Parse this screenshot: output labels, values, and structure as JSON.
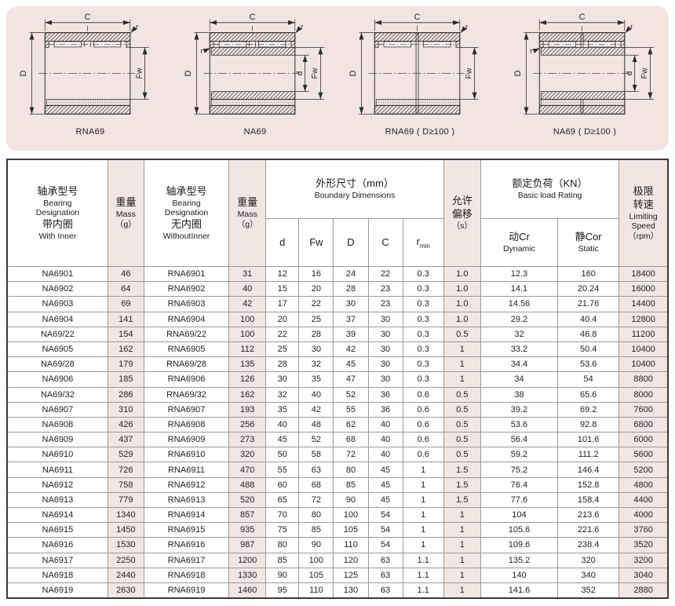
{
  "colors": {
    "panel_pink": "#f2e5e1",
    "column_shade": "#f0e7e3",
    "text": "#1a1a1a",
    "line_dark": "#2b2b2b"
  },
  "diagram": {
    "dim_labels": {
      "C": "C",
      "r": "r",
      "D": "D",
      "Fw": "Fw",
      "d": "d"
    },
    "figures": [
      {
        "id": "rna69",
        "caption": "RNA69",
        "inner": false,
        "double": false
      },
      {
        "id": "na69",
        "caption": "NA69",
        "inner": true,
        "double": false
      },
      {
        "id": "rna69-d100",
        "caption": "RNA69 ( D≥100 )",
        "inner": false,
        "double": true
      },
      {
        "id": "na69-d100",
        "caption": "NA69 ( D≥100 )",
        "inner": true,
        "double": true
      }
    ]
  },
  "table": {
    "shaded_columns": [
      1,
      3,
      9,
      12
    ],
    "header": {
      "with_inner": {
        "zh1": "轴承型号",
        "en1": "Bearing",
        "en2": "Designation",
        "zh2": "带内圈",
        "en3": "With Inner"
      },
      "mass": {
        "zh": "重量",
        "en": "Mass",
        "unit": "（g）"
      },
      "without_inner": {
        "zh1": "轴承型号",
        "en1": "Bearing",
        "en2": "Designation",
        "zh2": "无内圈",
        "en3": "WithoutInner"
      },
      "boundary": {
        "zh": "外形尺寸（mm）",
        "en": "Boundary Dimensions"
      },
      "sub": {
        "d": "d",
        "fw": "Fw",
        "D": "D",
        "C": "C",
        "r": "r",
        "r_sub": "min"
      },
      "misalign": {
        "zh1": "允许",
        "zh2": "偏移",
        "unit": "（s）"
      },
      "load": {
        "zh": "额定负荷（KN）",
        "en": "Basic load Rating"
      },
      "dynamic": {
        "zh": "动Cr",
        "en": "Dynamic"
      },
      "static": {
        "zh": "静Cor",
        "en": "Static"
      },
      "speed": {
        "zh1": "极限",
        "zh2": "转速",
        "en1": "Limiting",
        "en2": "Speed",
        "unit": "（rpm）"
      }
    },
    "rows": [
      [
        "NA6901",
        "46",
        "RNA6901",
        "31",
        "12",
        "16",
        "24",
        "22",
        "0.3",
        "1.0",
        "12.3",
        "160",
        "18400"
      ],
      [
        "NA6902",
        "64",
        "RNA6902",
        "40",
        "15",
        "20",
        "28",
        "23",
        "0.3",
        "1.0",
        "14.1",
        "20.24",
        "16000"
      ],
      [
        "NA6903",
        "69",
        "RNA6903",
        "42",
        "17",
        "22",
        "30",
        "23",
        "0.3",
        "1.0",
        "14.56",
        "21.76",
        "14400"
      ],
      [
        "NA6904",
        "141",
        "RNA6904",
        "100",
        "20",
        "25",
        "37",
        "30",
        "0.3",
        "1.0",
        "29.2",
        "40.4",
        "12800"
      ],
      [
        "NA69/22",
        "154",
        "RNA69/22",
        "100",
        "22",
        "28",
        "39",
        "30",
        "0.3",
        "0.5",
        "32",
        "46.8",
        "11200"
      ],
      [
        "NA6905",
        "162",
        "RNA6905",
        "112",
        "25",
        "30",
        "42",
        "30",
        "0.3",
        "1",
        "33.2",
        "50.4",
        "10400"
      ],
      [
        "NA69/28",
        "179",
        "RNA69/28",
        "135",
        "28",
        "32",
        "45",
        "30",
        "0.3",
        "1",
        "34.4",
        "53.6",
        "10400"
      ],
      [
        "NA6906",
        "185",
        "RNA6906",
        "126",
        "30",
        "35",
        "47",
        "30",
        "0.3",
        "1",
        "34",
        "54",
        "8800"
      ],
      [
        "NA69/32",
        "286",
        "RNA69/32",
        "162",
        "32",
        "40",
        "52",
        "36",
        "0.6",
        "0.5",
        "38",
        "65.6",
        "8000"
      ],
      [
        "NA6907",
        "310",
        "RNA6907",
        "193",
        "35",
        "42",
        "55",
        "36",
        "0.6",
        "0.5",
        "39.2",
        "69.2",
        "7600"
      ],
      [
        "NA6908",
        "426",
        "RNA6908",
        "256",
        "40",
        "48",
        "62",
        "40",
        "0.6",
        "0.5",
        "53.6",
        "92.8",
        "6800"
      ],
      [
        "NA6909",
        "437",
        "RNA6909",
        "273",
        "45",
        "52",
        "68",
        "40",
        "0.6",
        "0.5",
        "56.4",
        "101.6",
        "6000"
      ],
      [
        "NA6910",
        "529",
        "RNA6910",
        "320",
        "50",
        "58",
        "72",
        "40",
        "0.6",
        "0.5",
        "59.2",
        "111.2",
        "5600"
      ],
      [
        "NA6911",
        "726",
        "RNA6911",
        "470",
        "55",
        "63",
        "80",
        "45",
        "1",
        "1.5",
        "75.2",
        "146.4",
        "5200"
      ],
      [
        "NA6912",
        "758",
        "RNA6912",
        "488",
        "60",
        "68",
        "85",
        "45",
        "1",
        "1.5",
        "76.4",
        "152.8",
        "4800"
      ],
      [
        "NA6913",
        "779",
        "RNA6913",
        "520",
        "65",
        "72",
        "90",
        "45",
        "1",
        "1.5",
        "77.6",
        "158.4",
        "4400"
      ],
      [
        "NA6914",
        "1340",
        "RNA6914",
        "857",
        "70",
        "80",
        "100",
        "54",
        "1",
        "1",
        "104",
        "213.6",
        "4000"
      ],
      [
        "NA6915",
        "1450",
        "RNA6915",
        "935",
        "75",
        "85",
        "105",
        "54",
        "1",
        "1",
        "105.6",
        "221.6",
        "3760"
      ],
      [
        "NA6916",
        "1530",
        "RNA6916",
        "987",
        "80",
        "90",
        "110",
        "54",
        "1",
        "1",
        "109.6",
        "238.4",
        "3520"
      ],
      [
        "NA6917",
        "2250",
        "RNA6917",
        "1200",
        "85",
        "100",
        "120",
        "63",
        "1.1",
        "1",
        "135.2",
        "320",
        "3200"
      ],
      [
        "NA6918",
        "2440",
        "RNA6918",
        "1330",
        "90",
        "105",
        "125",
        "63",
        "1.1",
        "1",
        "140",
        "340",
        "3040"
      ],
      [
        "NA6919",
        "2630",
        "RNA6919",
        "1460",
        "95",
        "110",
        "130",
        "63",
        "1.1",
        "1",
        "141.6",
        "352",
        "2880"
      ]
    ]
  }
}
